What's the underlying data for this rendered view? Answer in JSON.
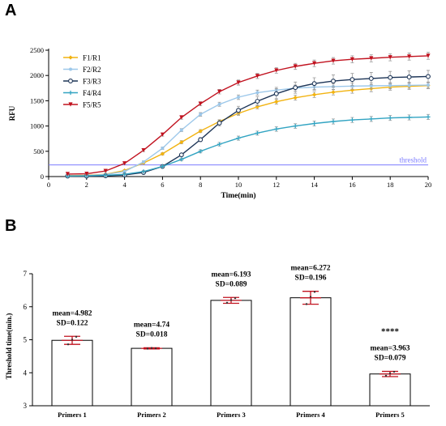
{
  "panels": {
    "a_label": "A",
    "b_label": "B"
  },
  "chart_data": [
    {
      "type": "line",
      "panel": "A",
      "xlabel": "Time(min)",
      "ylabel": "RFU",
      "xlim": [
        0,
        20
      ],
      "ylim": [
        0,
        2500
      ],
      "xticks": [
        0,
        2,
        4,
        6,
        8,
        10,
        12,
        14,
        16,
        18,
        20
      ],
      "yticks": [
        0,
        500,
        1000,
        1500,
        2000,
        2500
      ],
      "legend_position": "top-left",
      "threshold": {
        "value": 230,
        "label": "threshold",
        "color": "#7b7bff"
      },
      "x": [
        1,
        2,
        3,
        4,
        5,
        6,
        7,
        8,
        9,
        10,
        11,
        12,
        13,
        14,
        15,
        16,
        17,
        18,
        19,
        20
      ],
      "series": [
        {
          "name": "F1/R1",
          "color": "#f2b311",
          "marker": "diamond",
          "values": [
            20,
            25,
            45,
            120,
            270,
            450,
            680,
            900,
            1090,
            1250,
            1380,
            1480,
            1560,
            1620,
            1670,
            1710,
            1740,
            1770,
            1785,
            1800
          ],
          "errors": [
            8,
            8,
            10,
            15,
            20,
            25,
            30,
            30,
            35,
            40,
            40,
            45,
            50,
            55,
            55,
            60,
            60,
            60,
            60,
            60
          ]
        },
        {
          "name": "F2/R2",
          "color": "#9dc8ea",
          "marker": "dot",
          "values": [
            15,
            20,
            40,
            100,
            290,
            560,
            920,
            1230,
            1430,
            1570,
            1660,
            1710,
            1750,
            1770,
            1780,
            1790,
            1795,
            1800,
            1805,
            1810
          ],
          "errors": [
            8,
            8,
            10,
            15,
            20,
            25,
            30,
            35,
            40,
            45,
            50,
            55,
            60,
            60,
            60,
            60,
            60,
            60,
            60,
            60
          ]
        },
        {
          "name": "F3/R3",
          "color": "#1d3557",
          "marker": "circle",
          "values": [
            10,
            10,
            15,
            30,
            80,
            200,
            430,
            730,
            1060,
            1310,
            1490,
            1640,
            1760,
            1840,
            1890,
            1920,
            1940,
            1960,
            1970,
            1980
          ],
          "errors": [
            8,
            8,
            10,
            12,
            15,
            20,
            25,
            40,
            60,
            80,
            90,
            100,
            110,
            115,
            120,
            120,
            120,
            120,
            120,
            120
          ]
        },
        {
          "name": "F4/R4",
          "color": "#32a4c2",
          "marker": "cross",
          "values": [
            10,
            15,
            25,
            45,
            100,
            200,
            340,
            500,
            640,
            760,
            860,
            940,
            1000,
            1050,
            1090,
            1120,
            1140,
            1160,
            1170,
            1180
          ],
          "errors": [
            8,
            8,
            10,
            12,
            15,
            20,
            25,
            30,
            35,
            40,
            40,
            45,
            45,
            50,
            50,
            50,
            50,
            50,
            50,
            50
          ]
        },
        {
          "name": "F5/R5",
          "color": "#c1121f",
          "marker": "triangle-down",
          "values": [
            50,
            55,
            110,
            260,
            520,
            830,
            1170,
            1440,
            1680,
            1860,
            1990,
            2100,
            2180,
            2240,
            2290,
            2320,
            2340,
            2360,
            2375,
            2390
          ],
          "errors": [
            10,
            10,
            15,
            20,
            25,
            30,
            35,
            40,
            45,
            50,
            50,
            55,
            60,
            65,
            65,
            70,
            70,
            70,
            70,
            70
          ]
        }
      ]
    },
    {
      "type": "bar",
      "panel": "B",
      "ylabel": "Threshold time(min.)",
      "ylim": [
        3,
        7
      ],
      "yticks": [
        3,
        4,
        5,
        6,
        7
      ],
      "categories": [
        "Primers 1",
        "Primers 2",
        "Primers 3",
        "Primers 4",
        "Primers 5"
      ],
      "values": [
        4.982,
        4.74,
        6.193,
        6.272,
        3.963
      ],
      "sd": [
        0.122,
        0.018,
        0.089,
        0.196,
        0.079
      ],
      "mean_labels": [
        "mean=4.982",
        "mean=4.74",
        "mean=6.193",
        "mean=6.272",
        "mean=3.963"
      ],
      "sd_labels": [
        "SD=0.122",
        "SD=0.018",
        "SD=0.089",
        "SD=0.196",
        "SD=0.079"
      ],
      "significance": {
        "category_index": 4,
        "label": "****"
      },
      "points": [
        [
          4.86,
          5.0,
          5.09
        ],
        [
          4.73,
          4.75,
          4.74
        ],
        [
          6.12,
          6.2,
          6.26
        ],
        [
          6.08,
          6.3,
          6.45
        ],
        [
          3.91,
          3.98,
          4.03
        ]
      ],
      "bar_color": "#ffffff",
      "error_color": "#c1121f"
    }
  ]
}
